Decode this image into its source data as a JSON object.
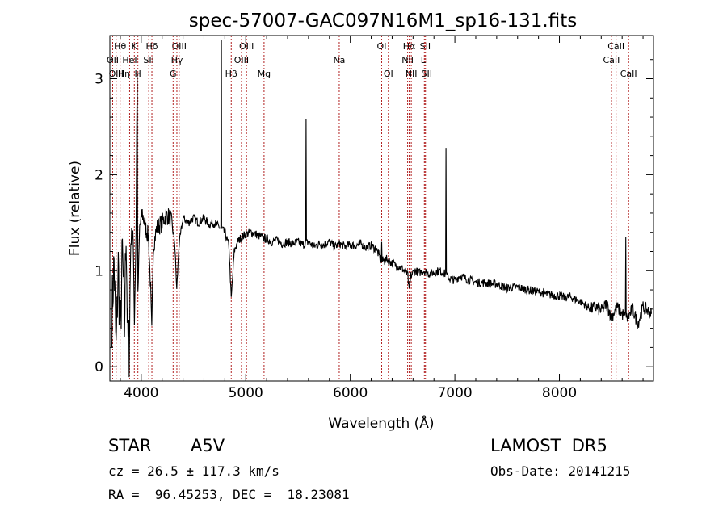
{
  "chart_data": {
    "type": "line",
    "title": "spec-57007-GAC097N16M1_sp16-131.fits",
    "xlabel": "Wavelength (Å)",
    "ylabel": "Flux (relative)",
    "xlim": [
      3700,
      8900
    ],
    "ylim": [
      -0.15,
      3.45
    ],
    "x_ticks": [
      4000,
      5000,
      6000,
      7000,
      8000
    ],
    "y_ticks": [
      0,
      1,
      2,
      3
    ],
    "line_color": "#000000",
    "marker_color": "#b22222",
    "spectrum_anchors": [
      [
        3720,
        0.55
      ],
      [
        3740,
        1.1
      ],
      [
        3760,
        0.15
      ],
      [
        3780,
        1.05
      ],
      [
        3800,
        0.3
      ],
      [
        3820,
        1.2
      ],
      [
        3840,
        0.4
      ],
      [
        3855,
        1.5
      ],
      [
        3870,
        0.3
      ],
      [
        3885,
        0.2
      ],
      [
        3900,
        1.3
      ],
      [
        3920,
        1.45
      ],
      [
        3935,
        0.5
      ],
      [
        3950,
        1.4
      ],
      [
        3960,
        3.0
      ],
      [
        3968,
        0.7
      ],
      [
        3985,
        1.45
      ],
      [
        4010,
        1.6
      ],
      [
        4040,
        1.45
      ],
      [
        4070,
        1.35
      ],
      [
        4090,
        0.8
      ],
      [
        4101,
        0.35
      ],
      [
        4115,
        1.25
      ],
      [
        4150,
        1.45
      ],
      [
        4200,
        1.5
      ],
      [
        4240,
        1.58
      ],
      [
        4280,
        1.55
      ],
      [
        4320,
        1.3
      ],
      [
        4340,
        0.8
      ],
      [
        4360,
        1.25
      ],
      [
        4400,
        1.55
      ],
      [
        4450,
        1.5
      ],
      [
        4500,
        1.55
      ],
      [
        4550,
        1.5
      ],
      [
        4600,
        1.55
      ],
      [
        4650,
        1.48
      ],
      [
        4700,
        1.5
      ],
      [
        4750,
        1.45
      ],
      [
        4800,
        1.4
      ],
      [
        4840,
        1.25
      ],
      [
        4861,
        0.7
      ],
      [
        4890,
        1.2
      ],
      [
        4920,
        1.3
      ],
      [
        4960,
        1.35
      ],
      [
        5000,
        1.38
      ],
      [
        5050,
        1.4
      ],
      [
        5100,
        1.38
      ],
      [
        5150,
        1.35
      ],
      [
        5200,
        1.33
      ],
      [
        5250,
        1.3
      ],
      [
        5300,
        1.32
      ],
      [
        5350,
        1.28
      ],
      [
        5400,
        1.3
      ],
      [
        5450,
        1.28
      ],
      [
        5500,
        1.3
      ],
      [
        5550,
        1.27
      ],
      [
        5600,
        1.3
      ],
      [
        5650,
        1.25
      ],
      [
        5700,
        1.28
      ],
      [
        5750,
        1.27
      ],
      [
        5800,
        1.3
      ],
      [
        5850,
        1.25
      ],
      [
        5900,
        1.28
      ],
      [
        5950,
        1.25
      ],
      [
        6000,
        1.27
      ],
      [
        6050,
        1.26
      ],
      [
        6100,
        1.28
      ],
      [
        6150,
        1.24
      ],
      [
        6200,
        1.26
      ],
      [
        6250,
        1.22
      ],
      [
        6300,
        1.1
      ],
      [
        6350,
        1.12
      ],
      [
        6400,
        1.08
      ],
      [
        6450,
        1.05
      ],
      [
        6500,
        1.02
      ],
      [
        6550,
        0.95
      ],
      [
        6563,
        0.78
      ],
      [
        6580,
        0.95
      ],
      [
        6620,
        1.0
      ],
      [
        6660,
        0.98
      ],
      [
        6700,
        1.0
      ],
      [
        6750,
        0.97
      ],
      [
        6800,
        0.98
      ],
      [
        6850,
        1.0
      ],
      [
        6900,
        0.97
      ],
      [
        6950,
        0.92
      ],
      [
        7000,
        0.9
      ],
      [
        7050,
        0.95
      ],
      [
        7100,
        0.92
      ],
      [
        7150,
        0.9
      ],
      [
        7200,
        0.88
      ],
      [
        7300,
        0.87
      ],
      [
        7400,
        0.86
      ],
      [
        7500,
        0.82
      ],
      [
        7600,
        0.83
      ],
      [
        7700,
        0.8
      ],
      [
        7800,
        0.78
      ],
      [
        7900,
        0.75
      ],
      [
        8000,
        0.74
      ],
      [
        8050,
        0.72
      ],
      [
        8100,
        0.73
      ],
      [
        8200,
        0.68
      ],
      [
        8300,
        0.6
      ],
      [
        8350,
        0.62
      ],
      [
        8400,
        0.58
      ],
      [
        8450,
        0.65
      ],
      [
        8500,
        0.52
      ],
      [
        8550,
        0.62
      ],
      [
        8600,
        0.55
      ],
      [
        8650,
        0.5
      ],
      [
        8700,
        0.6
      ],
      [
        8750,
        0.45
      ],
      [
        8800,
        0.62
      ],
      [
        8850,
        0.58
      ],
      [
        8880,
        0.55
      ]
    ],
    "emission_spikes": [
      [
        3962,
        3.05
      ],
      [
        4767,
        3.4
      ],
      [
        5577,
        2.58
      ],
      [
        6300,
        1.3
      ],
      [
        6915,
        2.28
      ],
      [
        8635,
        1.35
      ]
    ],
    "lines": [
      {
        "label": "Hθ",
        "x": 3798,
        "row": 0
      },
      {
        "label": "OII",
        "x": 3727,
        "row": 1
      },
      {
        "label": "OIII",
        "x": 3760,
        "row": 2
      },
      {
        "label": "Hη",
        "x": 3835,
        "row": 2
      },
      {
        "label": "HeI",
        "x": 3889,
        "row": 1
      },
      {
        "label": "K",
        "x": 3934,
        "row": 0
      },
      {
        "label": "H",
        "x": 3968,
        "row": 2
      },
      {
        "label": "Hδ",
        "x": 4102,
        "row": 0
      },
      {
        "label": "SII",
        "x": 4072,
        "row": 1
      },
      {
        "label": "OIII",
        "x": 4363,
        "row": 0
      },
      {
        "label": "Hγ",
        "x": 4341,
        "row": 1
      },
      {
        "label": "G",
        "x": 4305,
        "row": 2
      },
      {
        "label": "Hβ",
        "x": 4861,
        "row": 2
      },
      {
        "label": "OIII",
        "x": 5007,
        "row": 0
      },
      {
        "label": "OIII",
        "x": 4959,
        "row": 1
      },
      {
        "label": "Mg",
        "x": 5175,
        "row": 2
      },
      {
        "label": "Na",
        "x": 5894,
        "row": 1
      },
      {
        "label": "OI",
        "x": 6300,
        "row": 0
      },
      {
        "label": "OI",
        "x": 6364,
        "row": 2
      },
      {
        "label": "Hα",
        "x": 6563,
        "row": 0
      },
      {
        "label": "NII",
        "x": 6548,
        "row": 1
      },
      {
        "label": "NII",
        "x": 6583,
        "row": 2
      },
      {
        "label": "SII",
        "x": 6716,
        "row": 0
      },
      {
        "label": "Li",
        "x": 6708,
        "row": 1
      },
      {
        "label": "SII",
        "x": 6731,
        "row": 2
      },
      {
        "label": "CaII",
        "x": 8542,
        "row": 0
      },
      {
        "label": "CaII",
        "x": 8498,
        "row": 1
      },
      {
        "label": "CaII",
        "x": 8662,
        "row": 2
      }
    ]
  },
  "info": {
    "class": "STAR",
    "subclass": "A5V",
    "survey": "LAMOST  DR5",
    "cz": "cz = 26.5 ± 117.3 km/s",
    "obs_date": "Obs-Date: 20141215",
    "coords": "RA =  96.45253, DEC =  18.23081"
  }
}
